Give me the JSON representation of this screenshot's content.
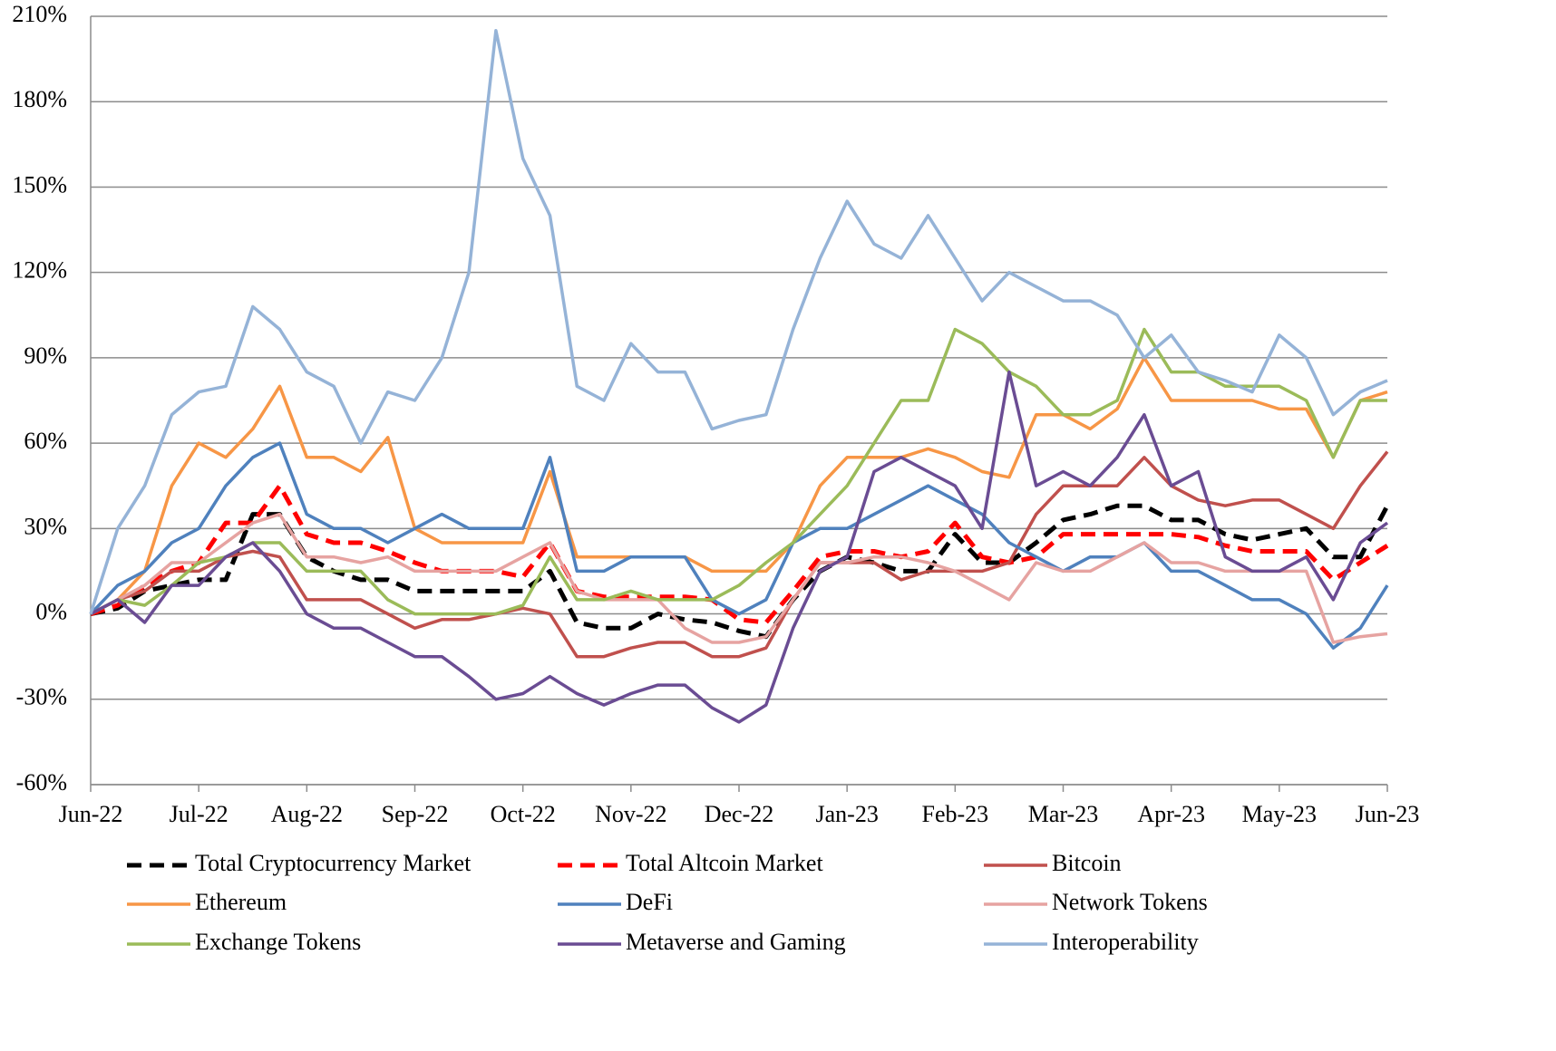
{
  "chart_data": {
    "type": "line",
    "categories": [
      "Jun-22",
      null,
      null,
      null,
      "Jul-22",
      null,
      null,
      null,
      "Aug-22",
      null,
      null,
      null,
      "Sep-22",
      null,
      null,
      null,
      "Oct-22",
      null,
      null,
      null,
      "Nov-22",
      null,
      null,
      null,
      "Dec-22",
      null,
      null,
      null,
      "Jan-23",
      null,
      null,
      null,
      "Feb-23",
      null,
      null,
      null,
      "Mar-23",
      null,
      null,
      null,
      "Apr-23",
      null,
      null,
      null,
      "May-23",
      null,
      null,
      null,
      "Jun-23"
    ],
    "ylim": [
      -60,
      210
    ],
    "yticks": [
      {
        "value": -60,
        "label": "-60%"
      },
      {
        "value": -30,
        "label": "-30%"
      },
      {
        "value": 0,
        "label": "0%"
      },
      {
        "value": 30,
        "label": "30%"
      },
      {
        "value": 60,
        "label": "60%"
      },
      {
        "value": 90,
        "label": "90%"
      },
      {
        "value": 120,
        "label": "120%"
      },
      {
        "value": 150,
        "label": "150%"
      },
      {
        "value": 180,
        "label": "180%"
      },
      {
        "value": 210,
        "label": "210%"
      }
    ],
    "grid": true,
    "legend": "bottom",
    "series": [
      {
        "name": "Total Cryptocurrency Market",
        "color": "#000000",
        "dashed": true,
        "values": [
          0,
          2,
          8,
          10,
          12,
          12,
          35,
          35,
          20,
          15,
          12,
          12,
          8,
          8,
          8,
          8,
          8,
          15,
          -3,
          -5,
          -5,
          0,
          -2,
          -3,
          -6,
          -8,
          5,
          15,
          20,
          18,
          15,
          15,
          28,
          18,
          18,
          25,
          33,
          35,
          38,
          38,
          33,
          33,
          28,
          26,
          28,
          30,
          20,
          20,
          38
        ]
      },
      {
        "name": "Total Altcoin Market",
        "color": "#ff0000",
        "dashed": true,
        "values": [
          0,
          3,
          10,
          15,
          18,
          32,
          32,
          45,
          28,
          25,
          25,
          22,
          18,
          15,
          15,
          15,
          13,
          25,
          8,
          6,
          6,
          6,
          6,
          5,
          -2,
          -3,
          8,
          20,
          22,
          22,
          20,
          22,
          32,
          20,
          18,
          20,
          28,
          28,
          28,
          28,
          28,
          27,
          24,
          22,
          22,
          22,
          12,
          18,
          24
        ]
      },
      {
        "name": "Bitcoin",
        "color": "#c0504d",
        "dashed": false,
        "values": [
          0,
          5,
          8,
          15,
          15,
          20,
          22,
          20,
          5,
          5,
          5,
          0,
          -5,
          -2,
          -2,
          0,
          2,
          0,
          -15,
          -15,
          -12,
          -10,
          -10,
          -15,
          -15,
          -12,
          5,
          18,
          18,
          18,
          12,
          15,
          15,
          15,
          18,
          35,
          45,
          45,
          45,
          55,
          45,
          40,
          38,
          40,
          40,
          35,
          30,
          45,
          57
        ]
      },
      {
        "name": "Ethereum",
        "color": "#f79646",
        "dashed": false,
        "values": [
          0,
          5,
          15,
          45,
          60,
          55,
          65,
          80,
          55,
          55,
          50,
          62,
          30,
          25,
          25,
          25,
          25,
          50,
          20,
          20,
          20,
          20,
          20,
          15,
          15,
          15,
          25,
          45,
          55,
          55,
          55,
          58,
          55,
          50,
          48,
          70,
          70,
          65,
          72,
          90,
          75,
          75,
          75,
          75,
          72,
          72,
          55,
          75,
          78
        ]
      },
      {
        "name": "DeFi",
        "color": "#4f81bd",
        "dashed": false,
        "values": [
          0,
          10,
          15,
          25,
          30,
          45,
          55,
          60,
          35,
          30,
          30,
          25,
          30,
          35,
          30,
          30,
          30,
          55,
          15,
          15,
          20,
          20,
          20,
          5,
          0,
          5,
          25,
          30,
          30,
          35,
          40,
          45,
          40,
          35,
          25,
          20,
          15,
          20,
          20,
          25,
          15,
          15,
          10,
          5,
          5,
          0,
          -12,
          -5,
          10
        ]
      },
      {
        "name": "Network Tokens",
        "color": "#e6a3a1",
        "dashed": false,
        "values": [
          0,
          5,
          10,
          18,
          18,
          25,
          32,
          35,
          20,
          20,
          18,
          20,
          15,
          15,
          15,
          15,
          20,
          25,
          8,
          5,
          5,
          5,
          -5,
          -10,
          -10,
          -8,
          5,
          18,
          18,
          20,
          20,
          18,
          15,
          10,
          5,
          18,
          15,
          15,
          20,
          25,
          18,
          18,
          15,
          15,
          15,
          15,
          -10,
          -8,
          -7
        ]
      },
      {
        "name": "Exchange Tokens",
        "color": "#9bbb59",
        "dashed": false,
        "values": [
          0,
          5,
          3,
          10,
          18,
          20,
          25,
          25,
          15,
          15,
          15,
          5,
          0,
          0,
          0,
          0,
          3,
          20,
          5,
          5,
          8,
          5,
          5,
          5,
          10,
          18,
          25,
          35,
          45,
          60,
          75,
          75,
          100,
          95,
          85,
          80,
          70,
          70,
          75,
          100,
          85,
          85,
          80,
          80,
          80,
          75,
          55,
          75,
          75
        ]
      },
      {
        "name": "Metaverse and Gaming",
        "color": "#6a4c93",
        "dashed": false,
        "values": [
          0,
          5,
          -3,
          10,
          10,
          20,
          25,
          15,
          0,
          -5,
          -5,
          -10,
          -15,
          -15,
          -22,
          -30,
          -28,
          -22,
          -28,
          -32,
          -28,
          -25,
          -25,
          -33,
          -38,
          -32,
          -5,
          15,
          20,
          50,
          55,
          50,
          45,
          30,
          85,
          45,
          50,
          45,
          55,
          70,
          45,
          50,
          20,
          15,
          15,
          20,
          5,
          25,
          32
        ]
      },
      {
        "name": "Interoperability",
        "color": "#95b3d7",
        "dashed": false,
        "values": [
          0,
          30,
          45,
          70,
          78,
          80,
          108,
          100,
          85,
          80,
          60,
          78,
          75,
          90,
          120,
          205,
          160,
          140,
          80,
          75,
          95,
          85,
          85,
          65,
          68,
          70,
          100,
          125,
          145,
          130,
          125,
          140,
          125,
          110,
          120,
          115,
          110,
          110,
          105,
          90,
          98,
          85,
          82,
          78,
          98,
          90,
          70,
          78,
          82
        ]
      }
    ]
  }
}
